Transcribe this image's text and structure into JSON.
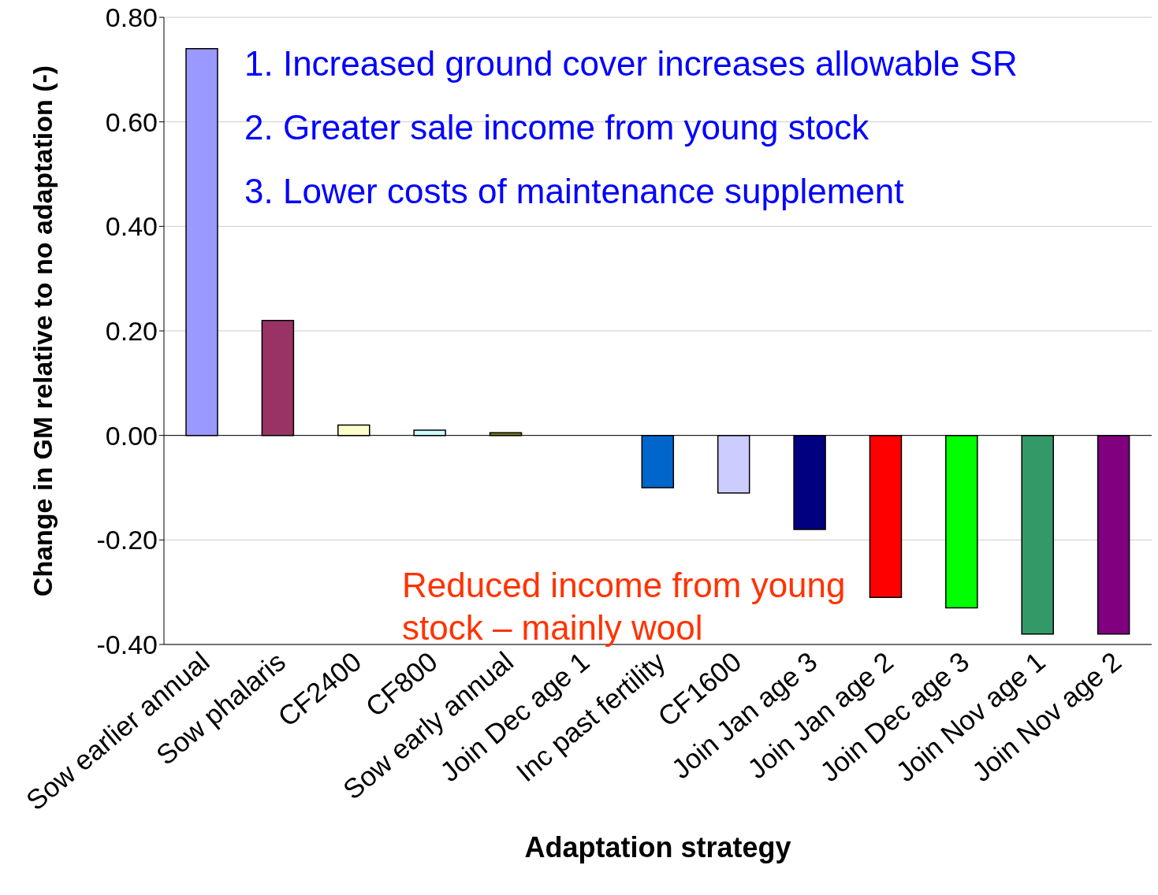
{
  "chart_data": {
    "type": "bar",
    "xlabel": "Adaptation strategy",
    "ylabel": "Change in GM relative to no adaptation (-)",
    "categories": [
      "Sow earlier annual",
      "Sow phalaris",
      "CF2400",
      "CF800",
      "Sow early annual",
      "Join Dec age 1",
      "Inc past fertility",
      "CF1600",
      "Join Jan age 3",
      "Join Jan age 2",
      "Join Dec age 3",
      "Join Nov age 1",
      "Join Nov age 2"
    ],
    "values": [
      0.74,
      0.22,
      0.02,
      0.01,
      0.005,
      0,
      -0.1,
      -0.11,
      -0.18,
      -0.31,
      -0.33,
      -0.38,
      -0.38
    ],
    "colors": [
      "#9999ff",
      "#993366",
      "#ffffcc",
      "#ccffff",
      "#808000",
      "#ffffff",
      "#0066cc",
      "#ccccff",
      "#000080",
      "#ff0000",
      "#00ff00",
      "#339966",
      "#800080"
    ],
    "ylim": [
      -0.4,
      0.8
    ],
    "yticks": [
      {
        "value": -0.4,
        "label": "-0.40"
      },
      {
        "value": -0.2,
        "label": "-0.20"
      },
      {
        "value": 0,
        "label": "0.00"
      },
      {
        "value": 0.2,
        "label": "0.20"
      },
      {
        "value": 0.4,
        "label": "0.40"
      },
      {
        "value": 0.6,
        "label": "0.60"
      },
      {
        "value": 0.8,
        "label": "0.80"
      }
    ],
    "grid": "y",
    "legend": false,
    "annotations": [
      "1. Increased ground cover increases allowable SR",
      "2. Greater sale income from young stock",
      "3. Lower costs of maintenance supplement",
      "Reduced income from young stock – mainly wool"
    ]
  }
}
